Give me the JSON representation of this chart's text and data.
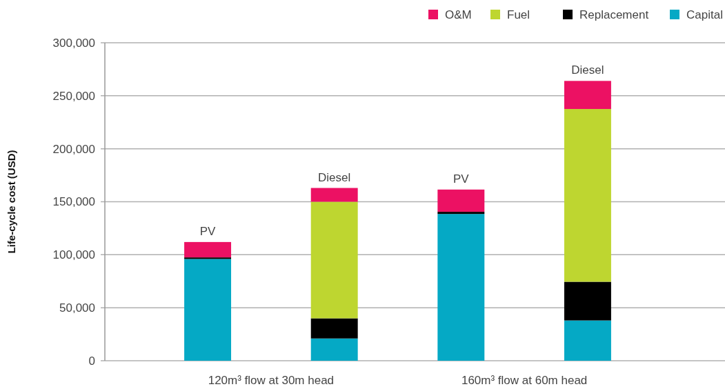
{
  "chart_data": {
    "type": "bar",
    "ylabel": "Life-cycle cost (USD)",
    "categories": [
      null,
      null,
      null,
      null
    ],
    "series": [
      {
        "name": "Capital",
        "color": "#05a9c5",
        "values": [
          96000,
          21000,
          138500,
          38000
        ]
      },
      {
        "name": "Replacement",
        "color": "#000000",
        "values": [
          1500,
          19000,
          2000,
          36500
        ]
      },
      {
        "name": "Fuel",
        "color": "#bed630",
        "values": [
          null,
          110000,
          null,
          163000
        ]
      },
      {
        "name": "O&M",
        "color": "#ec1163",
        "values": [
          14500,
          13000,
          21000,
          26500
        ]
      }
    ],
    "stacked": true,
    "ylim": [
      0,
      300000
    ],
    "yticks": [
      0,
      {
        "value": 50000,
        "label": "50,000"
      },
      {
        "value": 100000,
        "label": "100,000"
      },
      {
        "value": 150000,
        "label": "150,000"
      },
      {
        "value": 200000,
        "label": "200,000"
      },
      {
        "value": 250000,
        "label": "250,000"
      },
      {
        "value": 300000,
        "label": "300,000"
      }
    ],
    "grid": "y",
    "legend": "top right",
    "annotations": [
      "120m³ flow at 30m head",
      "160m³ flow at 60m head",
      {
        "text": "PV",
        "y": 112000
      },
      {
        "text": "Diesel",
        "y": 163000
      },
      {
        "text": "PV",
        "y": 161500
      },
      {
        "text": "Diesel",
        "y": 264500
      }
    ]
  }
}
